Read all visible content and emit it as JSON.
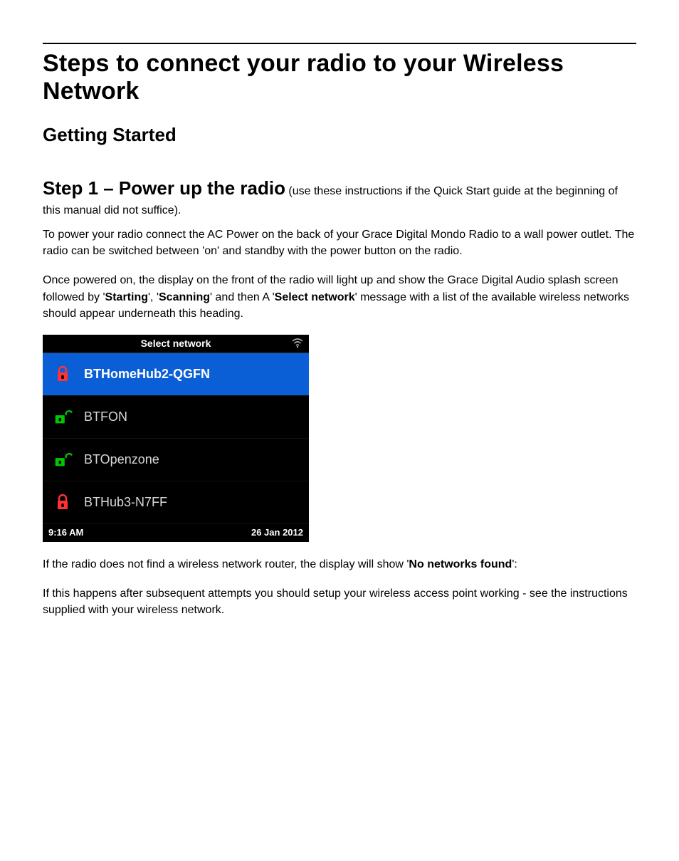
{
  "section_title": "Steps to connect your radio to your Wireless Network",
  "subsection_title": "Getting Started",
  "step1": {
    "prefix": "Step 1 – Power up the radio",
    "after": " (use these instructions if the Quick Start guide at the beginning of this manual did not suffice)."
  },
  "para_power": "To power your radio connect the AC Power on the back of your Grace Digital Mondo Radio to a wall power outlet.  The radio can be switched between 'on' and standby with the power button on the radio.",
  "para_display_1a": "Once powered on, the display on the front of the radio will light up and show the Grace Digital Audio splash screen followed by '",
  "bold_starting": "Starting",
  "para_display_1b": "', '",
  "bold_scanning": "Scanning",
  "para_display_1c": "' and then A '",
  "bold_select_network": "Select network",
  "para_display_1d": "' message with a list of the available wireless networks should appear underneath this heading.",
  "device": {
    "title": "Select network",
    "networks": [
      {
        "label": "BTHomeHub2-QGFN",
        "locked": true,
        "selected": true,
        "icon_color": "#ff3333"
      },
      {
        "label": "BTFON",
        "locked": false,
        "selected": false,
        "icon_color": "#00c800"
      },
      {
        "label": "BTOpenzone",
        "locked": false,
        "selected": false,
        "icon_color": "#00c800"
      },
      {
        "label": "BTHub3-N7FF",
        "locked": true,
        "selected": false,
        "icon_color": "#ff3333"
      }
    ],
    "time": "9:16 AM",
    "date": "26 Jan 2012",
    "colors": {
      "bg": "#000000",
      "selected_bg": "#0a5fd6",
      "text": "#d8d8d8",
      "text_sel": "#ffffff"
    }
  },
  "para_nonet_a": "If the radio does not find a wireless network router, the display will show '",
  "bold_nonet": "No networks found",
  "para_nonet_b": "':",
  "para_followup": "If this happens after subsequent attempts you should setup your wireless access point working - see the instructions supplied with your wireless network."
}
